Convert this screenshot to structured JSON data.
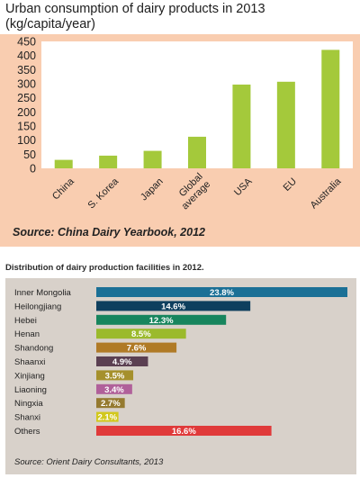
{
  "chart_data": [
    {
      "type": "bar",
      "title": "Urban consumption of dairy products in 2013 (kg/capita/year)",
      "categories": [
        "China",
        "S. Korea",
        "Japan",
        "Global average",
        "USA",
        "EU",
        "Australia"
      ],
      "values": [
        30,
        45,
        62,
        112,
        297,
        307,
        420
      ],
      "ylim": [
        0,
        450
      ],
      "yticks": [
        0,
        50,
        100,
        150,
        200,
        250,
        300,
        350,
        400,
        450
      ],
      "grid": false,
      "bar_color": "#a4c93b",
      "background_color": "#f9cdb0",
      "source": "Source: China Dairy Yearbook, 2012"
    },
    {
      "type": "bar",
      "orientation": "horizontal",
      "title": "Distribution of dairy production facilities in 2012.",
      "categories": [
        "Inner Mongolia",
        "Heilongjiang",
        "Hebei",
        "Henan",
        "Shandong",
        "Shaanxi",
        "Xinjiang",
        "Liaoning",
        "Ningxia",
        "Shanxi",
        "Others"
      ],
      "values": [
        23.8,
        14.6,
        12.3,
        8.5,
        7.6,
        4.9,
        3.5,
        3.4,
        2.7,
        2.1,
        16.6
      ],
      "value_labels": [
        "23.8%",
        "14.6%",
        "12.3%",
        "8.5%",
        "7.6%",
        "4.9%",
        "3.5%",
        "3.4%",
        "2.7%",
        "2.1%",
        "16.6%"
      ],
      "colors": [
        "#1b7096",
        "#0e3f5e",
        "#17855d",
        "#9bba2c",
        "#b07a26",
        "#5b4052",
        "#a5902c",
        "#b0609a",
        "#957a30",
        "#d2c81c",
        "#e03a3a"
      ],
      "background_color": "#d8d1ca",
      "source": "Source: Orient Dairy Consultants, 2013"
    }
  ]
}
